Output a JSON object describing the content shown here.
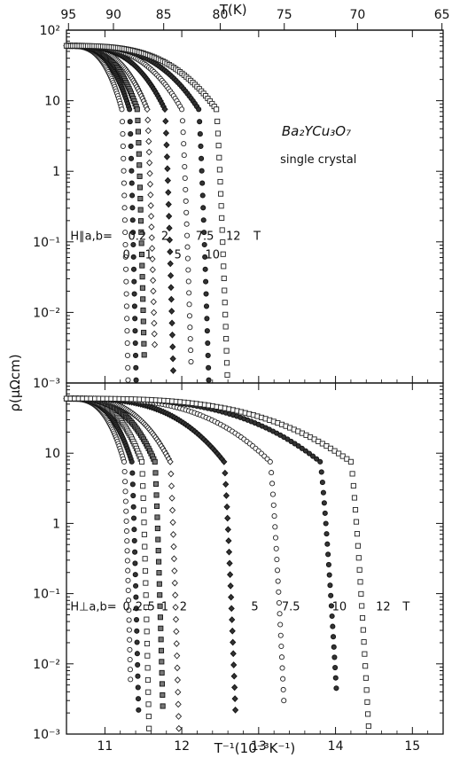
{
  "chart_data": [
    {
      "type": "scatter",
      "panel": "top",
      "title": "",
      "top_axis_label": "T(K)",
      "top_ticks": [
        "95",
        "90",
        "85",
        "80",
        "75",
        "70",
        "65"
      ],
      "top_tick_values": [
        95,
        90,
        85,
        80,
        75,
        70,
        65
      ],
      "x_ticks": [
        11,
        12,
        13,
        14,
        15
      ],
      "xlim": [
        10.5,
        15.4
      ],
      "ylim": [
        0.001,
        100
      ],
      "yscale": "log",
      "y_ticks": [
        {
          "value": 100,
          "label": "10²"
        },
        {
          "value": 10,
          "label": "10"
        },
        {
          "value": 1,
          "label": "1"
        },
        {
          "value": 0.1,
          "label": "10⁻¹"
        },
        {
          "value": 0.01,
          "label": "10⁻²"
        },
        {
          "value": 0.001,
          "label": "10⁻³"
        }
      ],
      "sample_line1": "Ba₂YCu₃O₇",
      "sample_line2": "single crystal",
      "field_prefix": "H∥a,b=",
      "field_labels": [
        {
          "text": "0.2",
          "x": 11.42,
          "y": 0.12
        },
        {
          "text": "2",
          "x": 11.78,
          "y": 0.12
        },
        {
          "text": "0",
          "x": 11.28,
          "y": 0.065
        },
        {
          "text": "1",
          "x": 11.57,
          "y": 0.065
        },
        {
          "text": "5",
          "x": 11.95,
          "y": 0.065
        },
        {
          "text": "7.5",
          "x": 12.3,
          "y": 0.12
        },
        {
          "text": "10",
          "x": 12.4,
          "y": 0.065
        },
        {
          "text": "12",
          "x": 12.67,
          "y": 0.12
        },
        {
          "text": "T",
          "x": 12.98,
          "y": 0.12
        }
      ],
      "series": [
        {
          "name": "0 T",
          "marker": "open-circle",
          "x_transition": 11.22,
          "y_end": 0.0011
        },
        {
          "name": "0.2 T",
          "marker": "filled-circle",
          "x_transition": 11.32,
          "y_end": 0.0011
        },
        {
          "name": "1 T",
          "marker": "half-square",
          "x_transition": 11.42,
          "y_end": 0.0025
        },
        {
          "name": "2 T",
          "marker": "open-diamond",
          "x_transition": 11.55,
          "y_end": 0.0035
        },
        {
          "name": "5 T",
          "marker": "filled-diamond",
          "x_transition": 11.78,
          "y_end": 0.0015
        },
        {
          "name": "7.5 T",
          "marker": "open-circle",
          "x_transition": 12.0,
          "y_end": 0.002
        },
        {
          "name": "10 T",
          "marker": "filled-circle",
          "x_transition": 12.22,
          "y_end": 0.0011
        },
        {
          "name": "12 T",
          "marker": "open-square",
          "x_transition": 12.45,
          "y_end": 0.0013
        }
      ]
    },
    {
      "type": "scatter",
      "panel": "bottom",
      "title": "",
      "xlabel": "T⁻¹(10⁻³K⁻¹)",
      "ylabel": "ρ(μΩcm)",
      "x_ticks": [
        11,
        12,
        13,
        14,
        15
      ],
      "xlim": [
        10.5,
        15.4
      ],
      "ylim": [
        0.001,
        100
      ],
      "yscale": "log",
      "y_ticks": [
        {
          "value": 10,
          "label": "10"
        },
        {
          "value": 1,
          "label": "1"
        },
        {
          "value": 0.1,
          "label": "10⁻¹"
        },
        {
          "value": 0.01,
          "label": "10⁻²"
        },
        {
          "value": 0.001,
          "label": "10⁻³"
        }
      ],
      "field_prefix": "H⊥a,b=",
      "field_labels": [
        {
          "text": "0",
          "x": 11.28,
          "y": 0.065
        },
        {
          "text": ".2",
          "x": 11.42,
          "y": 0.065
        },
        {
          "text": ".5",
          "x": 11.58,
          "y": 0.065
        },
        {
          "text": "1",
          "x": 11.78,
          "y": 0.065
        },
        {
          "text": "2",
          "x": 12.02,
          "y": 0.065
        },
        {
          "text": "5",
          "x": 12.95,
          "y": 0.065
        },
        {
          "text": "7.5",
          "x": 13.42,
          "y": 0.065
        },
        {
          "text": "10",
          "x": 14.05,
          "y": 0.065
        },
        {
          "text": "12",
          "x": 14.62,
          "y": 0.065
        },
        {
          "text": "T",
          "x": 14.92,
          "y": 0.065
        }
      ],
      "series": [
        {
          "name": "0 T",
          "marker": "open-circle",
          "x_transition": 11.25,
          "y_end": 0.006
        },
        {
          "name": "0.2 T",
          "marker": "filled-circle",
          "x_transition": 11.35,
          "y_end": 0.0022
        },
        {
          "name": "0.5 T",
          "marker": "open-square",
          "x_transition": 11.48,
          "y_end": 0.0012
        },
        {
          "name": "1 T",
          "marker": "half-square",
          "x_transition": 11.65,
          "y_end": 0.0025
        },
        {
          "name": "2 T",
          "marker": "open-diamond",
          "x_transition": 11.85,
          "y_end": 0.0012
        },
        {
          "name": "5 T",
          "marker": "filled-diamond",
          "x_transition": 12.55,
          "y_end": 0.0022
        },
        {
          "name": "7.5 T",
          "marker": "open-circle",
          "x_transition": 13.15,
          "y_end": 0.003
        },
        {
          "name": "10 T",
          "marker": "filled-circle",
          "x_transition": 13.8,
          "y_end": 0.0045
        },
        {
          "name": "12 T",
          "marker": "open-square",
          "x_transition": 14.2,
          "y_end": 0.0013
        }
      ]
    }
  ]
}
